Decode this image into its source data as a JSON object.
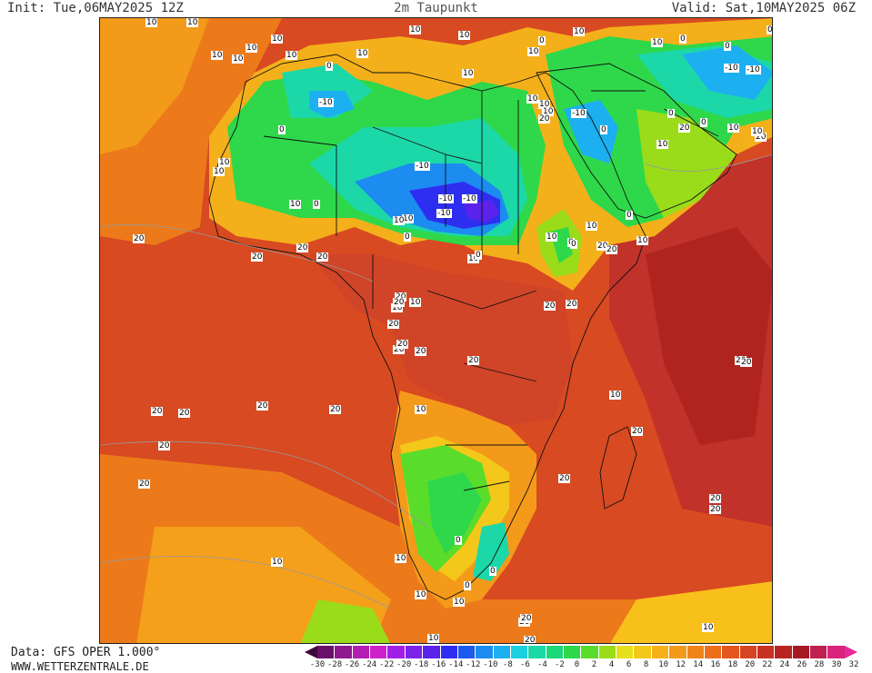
{
  "header": {
    "init": "Init: Tue,06MAY2025 12Z",
    "title": "2m Taupunkt",
    "valid": "Valid: Sat,10MAY2025 06Z"
  },
  "footer": {
    "source": "Data: GFS OPER 1.000°",
    "site": "WWW.WETTERZENTRALE.DE"
  },
  "legend": {
    "ticks": [
      "-30",
      "-28",
      "-26",
      "-24",
      "-22",
      "-20",
      "-18",
      "-16",
      "-14",
      "-12",
      "-10",
      "-8",
      "-6",
      "-4",
      "-2",
      "0",
      "2",
      "4",
      "6",
      "8",
      "10",
      "12",
      "14",
      "16",
      "18",
      "20",
      "22",
      "24",
      "26",
      "28",
      "30",
      "32"
    ],
    "colors": [
      "#3d0a3a",
      "#6a106a",
      "#8d1a8d",
      "#b21fb2",
      "#cc22cc",
      "#a21fe6",
      "#7d22e8",
      "#5a22ea",
      "#2e2ef0",
      "#1c5af0",
      "#1c8cf0",
      "#1cb0f0",
      "#1cd0e0",
      "#1cd8a8",
      "#1cd878",
      "#2ed84a",
      "#5adc2a",
      "#9adc1a",
      "#e6e01a",
      "#f4c81a",
      "#f8b01a",
      "#f49a1a",
      "#f0841a",
      "#ec6e1a",
      "#e4561e",
      "#d84422",
      "#c83222",
      "#b82422",
      "#a81822",
      "#c02050",
      "#d8247a",
      "#e8279a"
    ]
  },
  "map": {
    "contour_labels": [
      {
        "t": "10"
      },
      {
        "t": "10"
      },
      {
        "t": "10"
      },
      {
        "t": "10"
      },
      {
        "t": "10"
      },
      {
        "t": "10"
      },
      {
        "t": "10"
      },
      {
        "t": "10"
      },
      {
        "t": "10"
      },
      {
        "t": "10"
      },
      {
        "t": "10"
      },
      {
        "t": "10"
      },
      {
        "t": "0"
      },
      {
        "t": "10"
      },
      {
        "t": "10"
      },
      {
        "t": "0"
      },
      {
        "t": "0"
      },
      {
        "t": "0"
      },
      {
        "t": "-10"
      },
      {
        "t": "-10"
      },
      {
        "t": "-10"
      },
      {
        "t": "0"
      },
      {
        "t": "10"
      },
      {
        "t": "10"
      },
      {
        "t": "0"
      },
      {
        "t": "-10"
      },
      {
        "t": "10"
      },
      {
        "t": "10"
      },
      {
        "t": "10"
      },
      {
        "t": "20"
      },
      {
        "t": "0"
      },
      {
        "t": "-10"
      },
      {
        "t": "0"
      },
      {
        "t": "0"
      },
      {
        "t": "0"
      },
      {
        "t": "20"
      },
      {
        "t": "10"
      },
      {
        "t": "10"
      },
      {
        "t": "20"
      },
      {
        "t": "10"
      },
      {
        "t": "-10"
      },
      {
        "t": "-10"
      },
      {
        "t": "10"
      },
      {
        "t": "0"
      },
      {
        "t": "10"
      },
      {
        "t": "0"
      },
      {
        "t": "-10"
      },
      {
        "t": "10"
      },
      {
        "t": "0"
      },
      {
        "t": "10"
      },
      {
        "t": "10"
      },
      {
        "t": "20"
      },
      {
        "t": "20"
      },
      {
        "t": "20"
      },
      {
        "t": "20"
      },
      {
        "t": "20"
      },
      {
        "t": "20"
      },
      {
        "t": "10"
      },
      {
        "t": "0"
      },
      {
        "t": "10"
      },
      {
        "t": "0"
      },
      {
        "t": "20"
      },
      {
        "t": "10"
      },
      {
        "t": "10"
      },
      {
        "t": "20"
      },
      {
        "t": "20"
      },
      {
        "t": "20"
      },
      {
        "t": "20"
      },
      {
        "t": "20"
      },
      {
        "t": "20"
      },
      {
        "t": "20"
      },
      {
        "t": "20"
      },
      {
        "t": "20"
      },
      {
        "t": "20"
      },
      {
        "t": "20"
      },
      {
        "t": "20"
      },
      {
        "t": "20"
      },
      {
        "t": "20"
      },
      {
        "t": "10"
      },
      {
        "t": "20"
      },
      {
        "t": "20"
      },
      {
        "t": "20"
      },
      {
        "t": "20"
      },
      {
        "t": "20"
      },
      {
        "t": "20"
      },
      {
        "t": "20"
      },
      {
        "t": "20"
      },
      {
        "t": "0"
      },
      {
        "t": "0"
      },
      {
        "t": "0"
      },
      {
        "t": "10"
      },
      {
        "t": "10"
      },
      {
        "t": "10"
      },
      {
        "t": "10"
      },
      {
        "t": "10"
      },
      {
        "t": "20"
      },
      {
        "t": "10"
      },
      {
        "t": "10"
      }
    ]
  }
}
